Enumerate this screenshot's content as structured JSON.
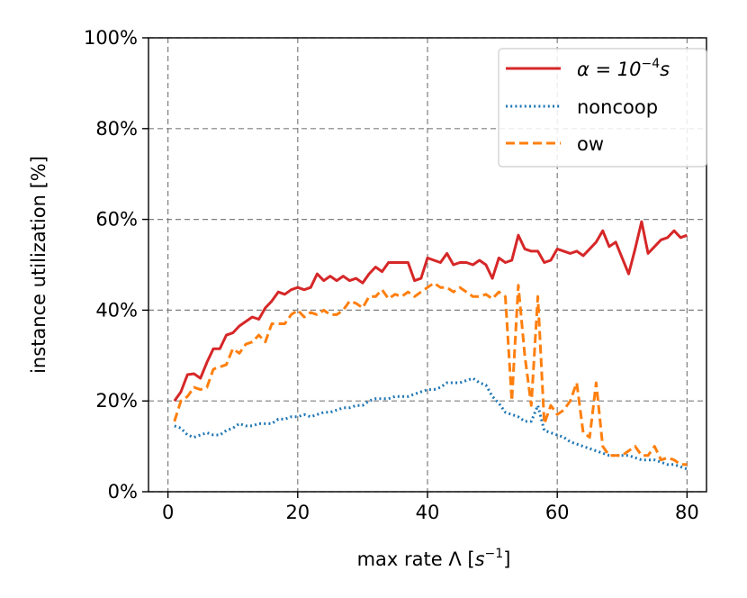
{
  "chart_data": {
    "type": "line",
    "xlabel": "max rate Λ [s⁻¹]",
    "xlabel_main": "max rate Λ [",
    "xlabel_var": "s",
    "xlabel_sup": "−1",
    "xlabel_end": "]",
    "ylabel": "instance utilization [%]",
    "xlim": [
      -3,
      83
    ],
    "ylim": [
      0,
      100
    ],
    "xticks": [
      0,
      20,
      40,
      60,
      80
    ],
    "xtick_labels": [
      "0",
      "20",
      "40",
      "60",
      "80"
    ],
    "yticks": [
      0,
      20,
      40,
      60,
      80,
      100
    ],
    "ytick_labels": [
      "0%",
      "20%",
      "40%",
      "60%",
      "80%",
      "100%"
    ],
    "grid": true,
    "legend_position": "top-right",
    "series": [
      {
        "name": "α = 10⁻⁴s",
        "legend_main": "α = 10",
        "legend_sup": "−4",
        "legend_end": "s",
        "color": "#d62728",
        "style": "solid",
        "x": [
          1,
          2,
          3,
          4,
          5,
          6,
          7,
          8,
          9,
          10,
          11,
          12,
          13,
          14,
          15,
          16,
          17,
          18,
          19,
          20,
          21,
          22,
          23,
          24,
          25,
          26,
          27,
          28,
          29,
          30,
          31,
          32,
          33,
          34,
          35,
          36,
          37,
          38,
          39,
          40,
          41,
          42,
          43,
          44,
          45,
          46,
          47,
          48,
          49,
          50,
          51,
          52,
          53,
          54,
          55,
          56,
          57,
          58,
          59,
          60,
          61,
          62,
          63,
          64,
          65,
          66,
          67,
          68,
          69,
          70,
          71,
          72,
          73,
          74,
          75,
          76,
          77,
          78,
          79,
          80
        ],
        "y": [
          20,
          22,
          25.8,
          26,
          25,
          28.5,
          31.5,
          31.5,
          34.5,
          35,
          36.5,
          37.5,
          38.5,
          38,
          40.5,
          42,
          44,
          43.5,
          44.5,
          45,
          44.5,
          45,
          48,
          46.5,
          47.5,
          46.5,
          47.5,
          46.5,
          47,
          46,
          48,
          49.5,
          48.5,
          50.5,
          50.5,
          50.5,
          50.5,
          46.5,
          47,
          51.5,
          51,
          50.5,
          52.5,
          50,
          50.5,
          50.5,
          50,
          51,
          50,
          47,
          51.5,
          50.5,
          51,
          56.5,
          53.5,
          53,
          53,
          50.5,
          51,
          53.5,
          53,
          52.5,
          53,
          52,
          53.5,
          55,
          57.5,
          54,
          55,
          51.5,
          48,
          53.5,
          59.5,
          52.5,
          54,
          55.5,
          56,
          57.5,
          56,
          56.5
        ]
      },
      {
        "name": "noncoop",
        "color": "#1f77b4",
        "style": "dotted",
        "x": [
          1,
          2,
          3,
          4,
          5,
          6,
          7,
          8,
          9,
          10,
          11,
          12,
          13,
          14,
          15,
          16,
          17,
          18,
          19,
          20,
          21,
          22,
          23,
          24,
          25,
          26,
          27,
          28,
          29,
          30,
          31,
          32,
          33,
          34,
          35,
          36,
          37,
          38,
          39,
          40,
          41,
          42,
          43,
          44,
          45,
          46,
          47,
          48,
          49,
          50,
          51,
          52,
          53,
          54,
          55,
          56,
          57,
          58,
          59,
          60,
          61,
          62,
          63,
          64,
          65,
          66,
          67,
          68,
          69,
          70,
          71,
          72,
          73,
          74,
          75,
          76,
          77,
          78,
          79,
          80
        ],
        "y": [
          14.5,
          14,
          12.5,
          12,
          12.5,
          13,
          12.5,
          12.5,
          13.5,
          14,
          15,
          14.5,
          14.5,
          15,
          15,
          15,
          16,
          16,
          16.5,
          16.5,
          17,
          16.5,
          17,
          17.5,
          17.5,
          18,
          18.5,
          18.5,
          19,
          19,
          20,
          20.5,
          20.5,
          20.5,
          21,
          21,
          21,
          21.5,
          22,
          22.5,
          22.5,
          23,
          24,
          24,
          24,
          24.5,
          25,
          24,
          23.5,
          21,
          19.5,
          17.5,
          17,
          16.5,
          15.5,
          15.5,
          19,
          13.5,
          13,
          12.5,
          12,
          11,
          10.5,
          10,
          9.5,
          9,
          8.5,
          8,
          8,
          8,
          8,
          7.5,
          7,
          7,
          7,
          6.5,
          6,
          6,
          5.5,
          5
        ]
      },
      {
        "name": "ow",
        "color": "#ff7f0e",
        "style": "dashed",
        "x": [
          1,
          2,
          3,
          4,
          5,
          6,
          7,
          8,
          9,
          10,
          11,
          12,
          13,
          14,
          15,
          16,
          17,
          18,
          19,
          20,
          21,
          22,
          23,
          24,
          25,
          26,
          27,
          28,
          29,
          30,
          31,
          32,
          33,
          34,
          35,
          36,
          37,
          38,
          39,
          40,
          41,
          42,
          43,
          44,
          45,
          46,
          47,
          48,
          49,
          50,
          51,
          52,
          53,
          54,
          55,
          56,
          57,
          58,
          59,
          60,
          61,
          62,
          63,
          64,
          65,
          66,
          67,
          68,
          69,
          70,
          71,
          72,
          73,
          74,
          75,
          76,
          77,
          78,
          79,
          80
        ],
        "y": [
          15.5,
          20,
          21,
          23,
          22.5,
          23,
          27,
          27.5,
          28,
          31.5,
          30.5,
          32.5,
          33,
          34.5,
          33,
          37,
          37,
          37,
          39,
          40,
          38.5,
          39.5,
          39,
          40,
          39,
          39,
          40,
          42,
          41.5,
          40.5,
          43,
          43,
          44.5,
          42.5,
          43.5,
          43,
          44,
          43,
          44,
          45,
          46,
          45,
          45,
          44,
          45,
          44,
          43,
          43,
          43.5,
          42.5,
          44,
          43,
          20,
          45.5,
          30,
          19,
          43,
          15,
          19,
          17,
          18,
          20,
          24,
          13,
          12,
          24,
          10,
          8,
          8,
          8,
          9,
          10,
          8,
          8,
          10,
          7,
          7.5,
          7,
          6,
          6
        ]
      }
    ]
  }
}
